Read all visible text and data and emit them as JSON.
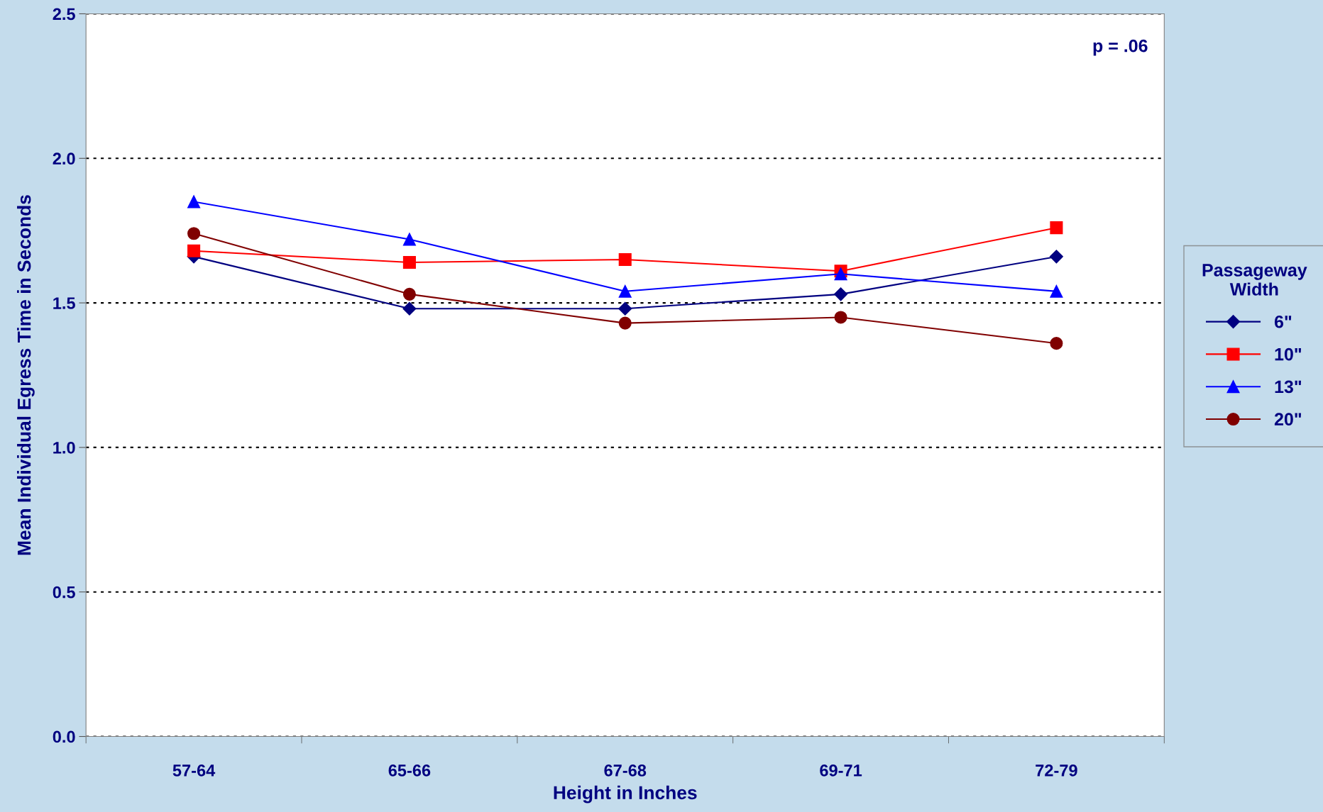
{
  "chart_data": {
    "type": "line",
    "xlabel": "Height in Inches",
    "ylabel": "Mean Individual Egress Time in Seconds",
    "legend_title": "Passageway Width",
    "categories": [
      "57-64",
      "65-66",
      "67-68",
      "69-71",
      "72-79"
    ],
    "series": [
      {
        "name": "6\"",
        "color": "#000080",
        "marker": "diamond",
        "values": [
          1.66,
          1.48,
          1.48,
          1.53,
          1.66
        ]
      },
      {
        "name": "10\"",
        "color": "#ff0000",
        "marker": "square",
        "values": [
          1.68,
          1.64,
          1.65,
          1.61,
          1.76
        ]
      },
      {
        "name": "13\"",
        "color": "#0000ff",
        "marker": "triangle",
        "values": [
          1.85,
          1.72,
          1.54,
          1.6,
          1.54
        ]
      },
      {
        "name": "20\"",
        "color": "#800000",
        "marker": "circle",
        "values": [
          1.74,
          1.53,
          1.43,
          1.45,
          1.36
        ]
      }
    ],
    "ylim": [
      0,
      2.5
    ],
    "yticks": [
      {
        "value": 0,
        "label": "0.0"
      },
      {
        "value": 0.5,
        "label": "0.5"
      },
      {
        "value": 1,
        "label": "1.0"
      },
      {
        "value": 1.5,
        "label": "1.5"
      },
      {
        "value": 2,
        "label": "2.0"
      },
      {
        "value": 2.5,
        "label": "2.5"
      }
    ],
    "grid": "y",
    "legend": "right",
    "annotations": [
      "p = .06"
    ]
  }
}
